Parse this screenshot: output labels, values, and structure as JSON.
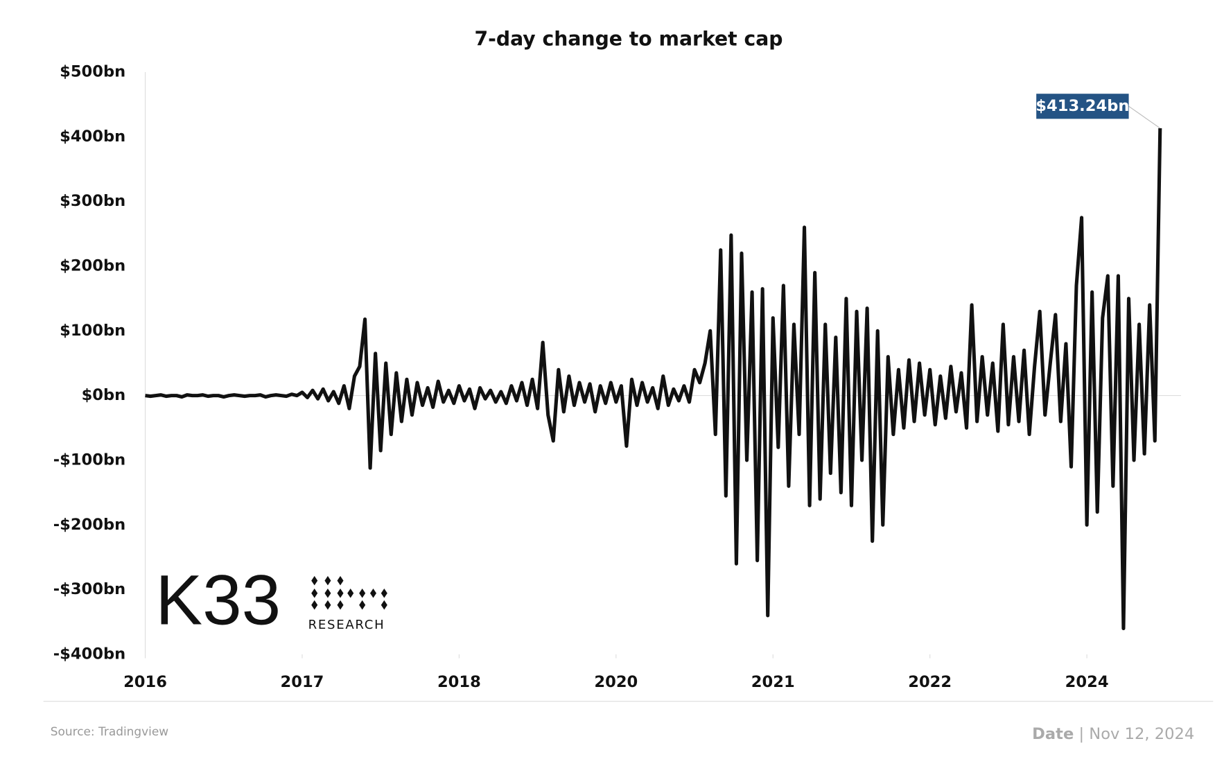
{
  "chart_data": {
    "type": "line",
    "title": "7-day change to market cap",
    "color": "#111111",
    "values": [
      0,
      -1,
      0,
      1,
      -1,
      0,
      0,
      -2,
      1,
      0,
      0,
      1,
      -1,
      0,
      0,
      -2,
      0,
      1,
      0,
      -1,
      0,
      0,
      1,
      -2,
      0,
      1,
      0,
      -1,
      2,
      0,
      5,
      -3,
      8,
      -5,
      10,
      -8,
      6,
      -12,
      15,
      -20,
      30,
      45,
      118,
      -112,
      65,
      -85,
      50,
      -60,
      35,
      -40,
      25,
      -30,
      20,
      -15,
      12,
      -18,
      22,
      -10,
      8,
      -12,
      15,
      -8,
      10,
      -20,
      12,
      -5,
      8,
      -10,
      6,
      -12,
      15,
      -8,
      20,
      -15,
      25,
      -20,
      82,
      -30,
      -70,
      40,
      -25,
      30,
      -15,
      20,
      -10,
      18,
      -25,
      15,
      -12,
      20,
      -10,
      15,
      -78,
      25,
      -15,
      20,
      -10,
      12,
      -20,
      30,
      -15,
      10,
      -8,
      15,
      -10,
      40,
      20,
      50,
      100,
      -60,
      225,
      -155,
      248,
      -260,
      220,
      -100,
      160,
      -255,
      165,
      -340,
      120,
      -80,
      170,
      -140,
      110,
      -60,
      260,
      -170,
      190,
      -160,
      110,
      -120,
      90,
      -150,
      150,
      -170,
      130,
      -100,
      135,
      -225,
      100,
      -200,
      60,
      -60,
      40,
      -50,
      55,
      -40,
      50,
      -30,
      40,
      -45,
      30,
      -35,
      45,
      -25,
      35,
      -50,
      140,
      -40,
      60,
      -30,
      50,
      -55,
      110,
      -45,
      60,
      -40,
      70,
      -60,
      45,
      130,
      -30,
      50,
      125,
      -40,
      80,
      -110,
      170,
      275,
      -200,
      160,
      -180,
      120,
      185,
      -140,
      185,
      -360,
      150,
      -100,
      110,
      -90,
      140,
      -70,
      413.24
    ],
    "value_labels": [
      null,
      null,
      null,
      null,
      null,
      null,
      null,
      null,
      null,
      null,
      null,
      null,
      null,
      null,
      null,
      null,
      null,
      null,
      null,
      null,
      null,
      null,
      null,
      null,
      null,
      null,
      null,
      null,
      null,
      null,
      null,
      null,
      null,
      null,
      null,
      null,
      null,
      null,
      null,
      null,
      null,
      null,
      null,
      null,
      null,
      null,
      null,
      null,
      null,
      null,
      null,
      null,
      null,
      null,
      null,
      null,
      null,
      null,
      null,
      null,
      null,
      null,
      null,
      null,
      null,
      null,
      null,
      null,
      null,
      null,
      null,
      null,
      null,
      null,
      null,
      null,
      null,
      null,
      null,
      null,
      null,
      null,
      null,
      null,
      null,
      null,
      null,
      null,
      null,
      null,
      null,
      null,
      null,
      null,
      null,
      null,
      null,
      null,
      null,
      null,
      null,
      null,
      null,
      null,
      null,
      null,
      null,
      null,
      null,
      null,
      null,
      null,
      null,
      null,
      null,
      null,
      null,
      null,
      null,
      null,
      null,
      null,
      null,
      null,
      null,
      null,
      null,
      null,
      null,
      null,
      null,
      null,
      null,
      null,
      null,
      null,
      null,
      null,
      null,
      null,
      null,
      null,
      null,
      null,
      null,
      null,
      null,
      null,
      null,
      null,
      null,
      null,
      null,
      null,
      null,
      null,
      null,
      null,
      null,
      null,
      null,
      null,
      null,
      null,
      null,
      null,
      null,
      null,
      null,
      null,
      null,
      null,
      null,
      null,
      null,
      null,
      null,
      null,
      null,
      null,
      null,
      null,
      null,
      null,
      null,
      null,
      null,
      null,
      null,
      null,
      null,
      null,
      null,
      null,
      "$413.24bn"
    ],
    "label_color": "#245384",
    "xlim": [
      0,
      198
    ],
    "xticks": [
      {
        "value": 0,
        "label": "2016"
      },
      {
        "value": 30,
        "label": "2017"
      },
      {
        "value": 60,
        "label": "2018"
      },
      {
        "value": 90,
        "label": "2020"
      },
      {
        "value": 120,
        "label": "2021"
      },
      {
        "value": 150,
        "label": "2022"
      },
      {
        "value": 180,
        "label": "2024"
      }
    ],
    "ylim": [
      -400,
      500
    ],
    "yticks": [
      {
        "value": 500,
        "label": "$500bn"
      },
      {
        "value": 400,
        "label": "$400bn"
      },
      {
        "value": 300,
        "label": "$300bn"
      },
      {
        "value": 200,
        "label": "$200bn"
      },
      {
        "value": 100,
        "label": "$100bn"
      },
      {
        "value": 0,
        "label": "$0bn"
      },
      {
        "value": -100,
        "label": "-$100bn"
      },
      {
        "value": -200,
        "label": "-$200bn"
      },
      {
        "value": -300,
        "label": "-$300bn"
      },
      {
        "value": -400,
        "label": "-$400bn"
      }
    ],
    "grid": false
  },
  "logo": {
    "name": "K33",
    "sub": "RESEARCH"
  },
  "footer": {
    "source": "Source:  Tradingview",
    "date_label": "Date",
    "separator": "|",
    "date": "Nov 12, 2024"
  }
}
